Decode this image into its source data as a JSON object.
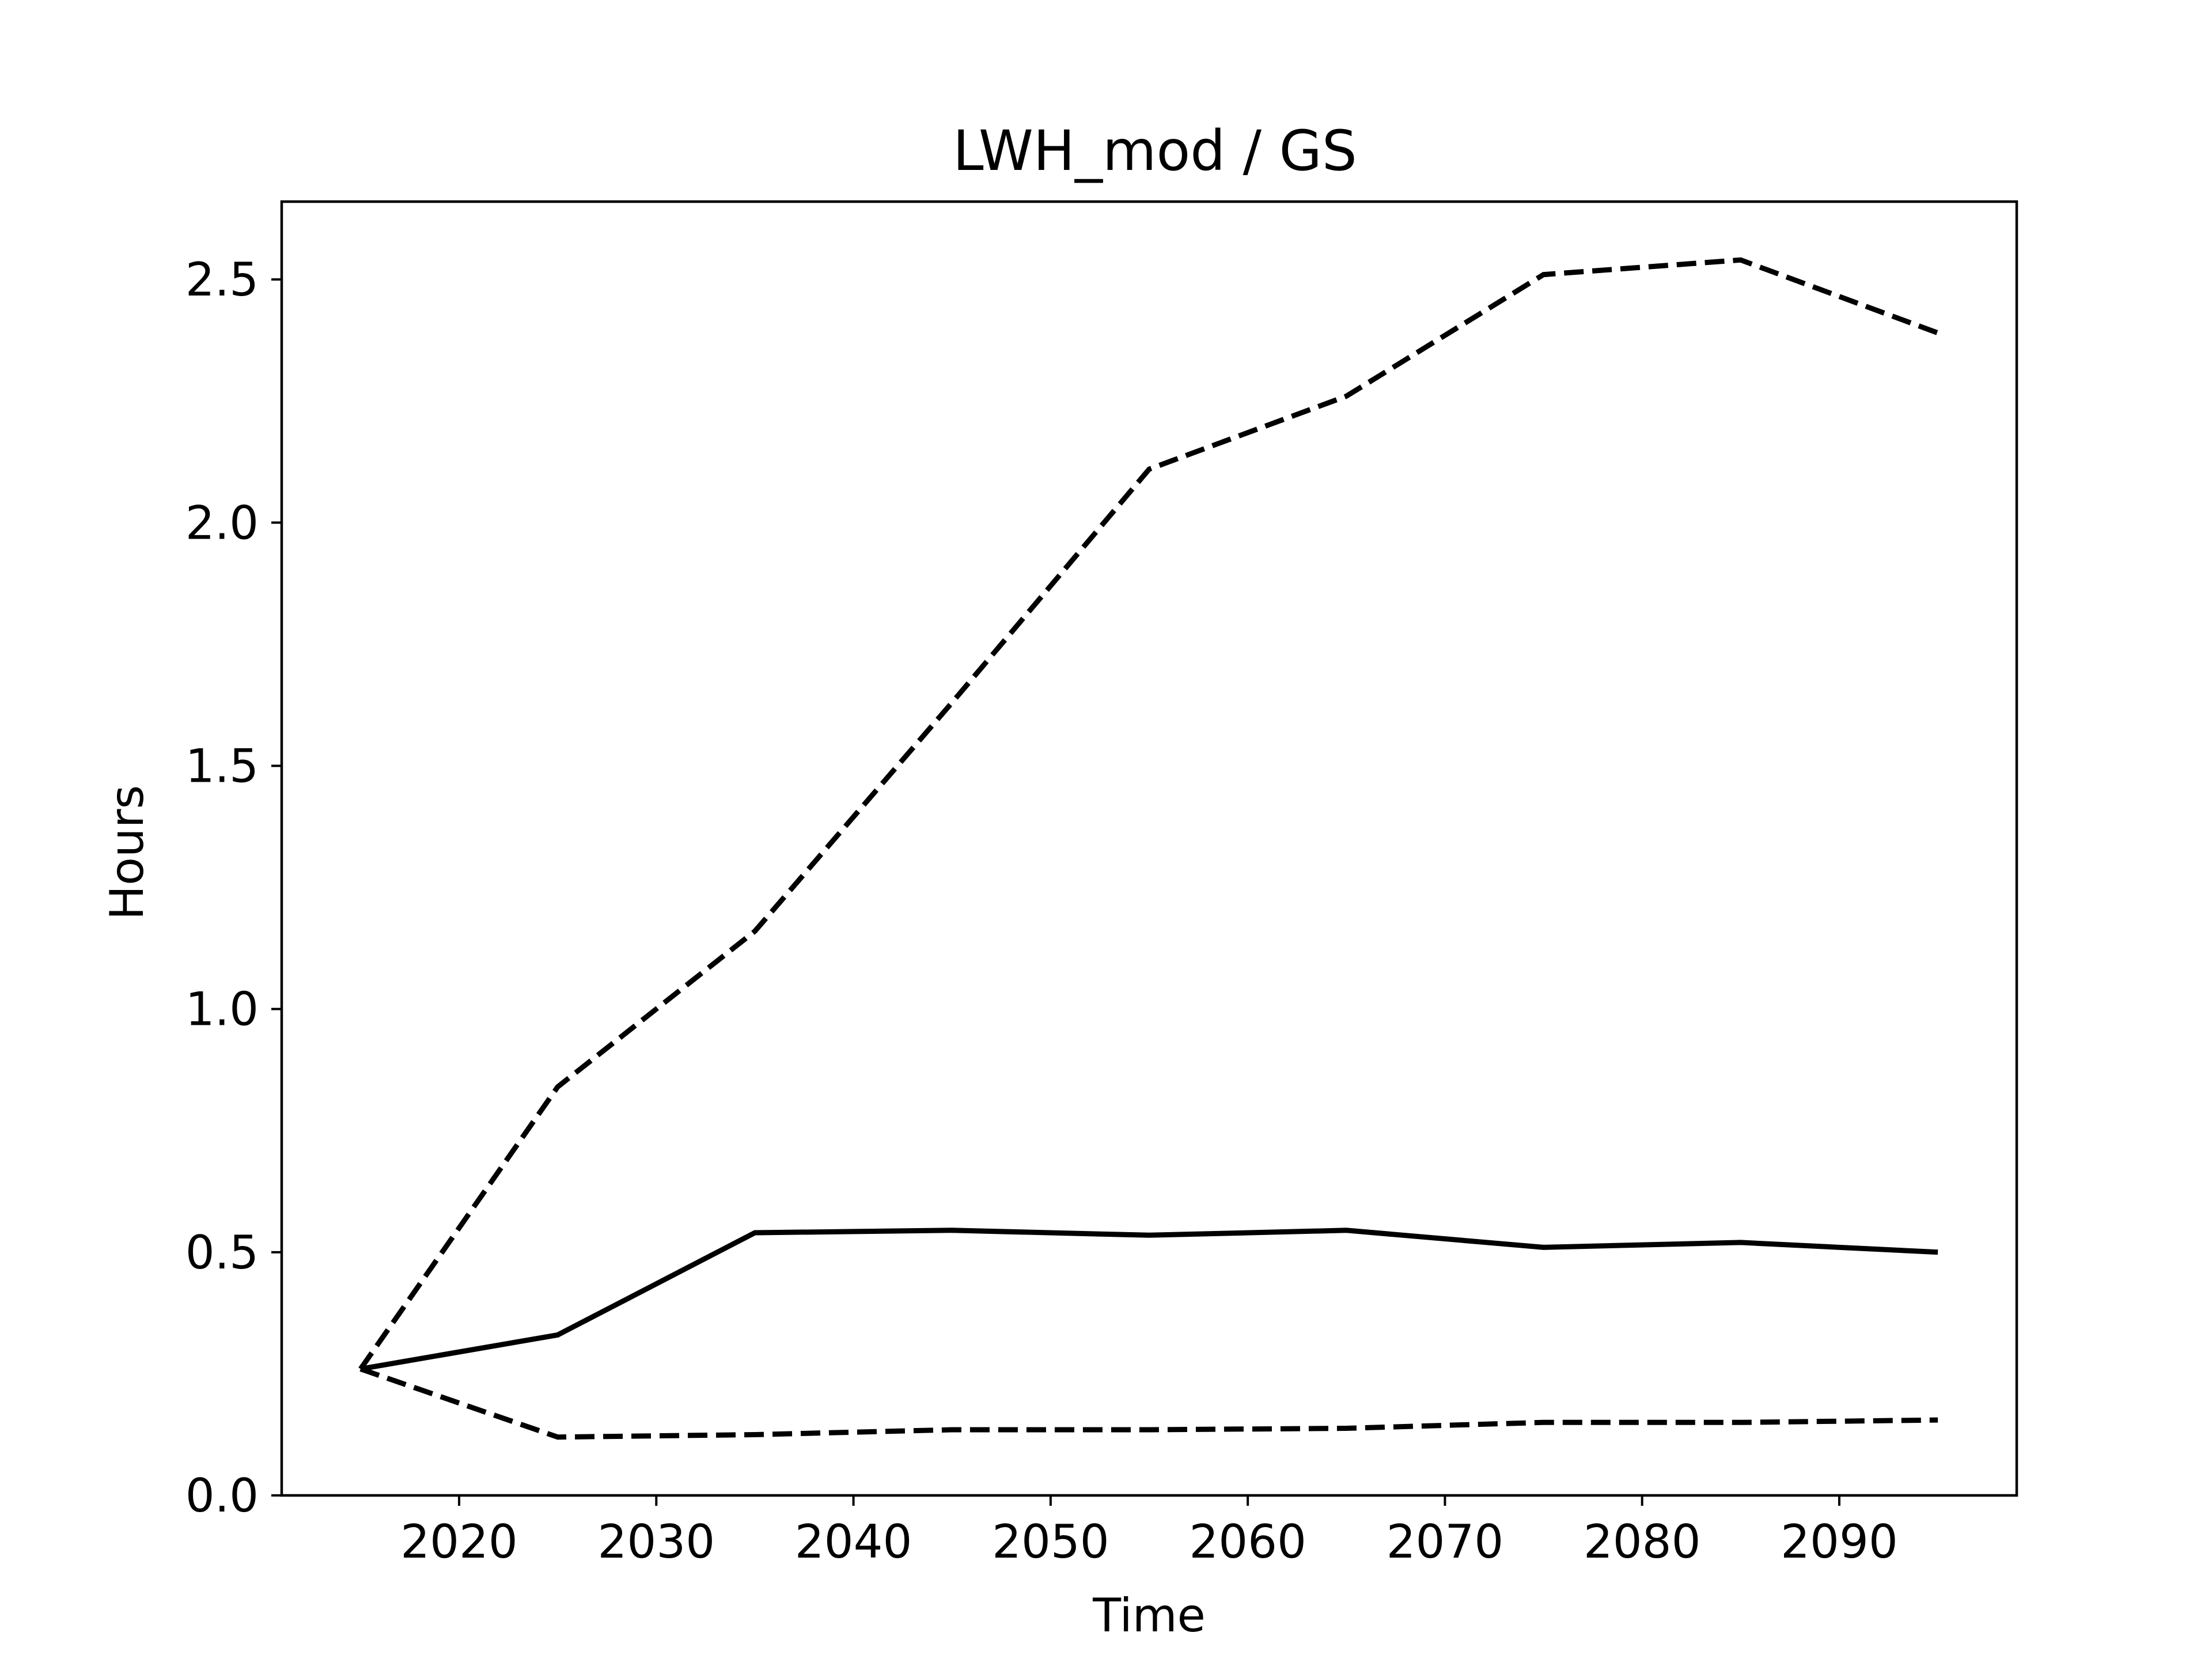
{
  "chart_data": {
    "type": "line",
    "title": "LWH_mod / GS",
    "xlabel": "Time",
    "ylabel": "Hours",
    "xlim": [
      2011,
      2099
    ],
    "ylim": [
      0.0,
      2.66
    ],
    "x_ticks": [
      2020,
      2030,
      2040,
      2050,
      2060,
      2070,
      2080,
      2090
    ],
    "y_ticks": [
      0.0,
      0.5,
      1.0,
      1.5,
      2.0,
      2.5
    ],
    "x_tick_labels": [
      "2020",
      "2030",
      "2040",
      "2050",
      "2060",
      "2070",
      "2080",
      "2090"
    ],
    "y_tick_labels": [
      "0.0",
      "0.5",
      "1.0",
      "1.5",
      "2.0",
      "2.5"
    ],
    "grid": false,
    "legend": "none",
    "x": [
      2015,
      2025,
      2035,
      2045,
      2055,
      2065,
      2075,
      2085,
      2095
    ],
    "series": [
      {
        "style": "dashed",
        "color": "#000000",
        "values": [
          0.26,
          0.84,
          1.16,
          1.63,
          2.11,
          2.26,
          2.51,
          2.54,
          2.39
        ]
      },
      {
        "style": "solid",
        "color": "#000000",
        "values": [
          0.26,
          0.33,
          0.54,
          0.545,
          0.535,
          0.545,
          0.51,
          0.52,
          0.5
        ]
      },
      {
        "style": "dashed",
        "color": "#000000",
        "values": [
          0.26,
          0.12,
          0.125,
          0.135,
          0.135,
          0.138,
          0.15,
          0.15,
          0.155
        ]
      }
    ]
  }
}
